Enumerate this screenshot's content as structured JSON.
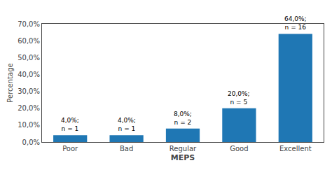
{
  "chart_data": {
    "type": "bar",
    "categories": [
      "Poor",
      "Bad",
      "Regular",
      "Good",
      "Excellent"
    ],
    "values": [
      4.0,
      4.0,
      8.0,
      20.0,
      64.0
    ],
    "annotations": [
      "4,0%;\nn = 1",
      "4,0%;\nn = 1",
      "8,0%;\nn = 2",
      "20,0%;\nn = 5",
      "64,0%;\nn = 16"
    ],
    "xlabel": "MEPS",
    "ylabel": "Percentage",
    "ylim": [
      0,
      70
    ],
    "yticks": [
      {
        "value": 0,
        "label": "0,0%"
      },
      {
        "value": 10,
        "label": "10,0%"
      },
      {
        "value": 20,
        "label": "20,0%"
      },
      {
        "value": 30,
        "label": "30,0%"
      },
      {
        "value": 40,
        "label": "40,0%"
      },
      {
        "value": 50,
        "label": "50,0%"
      },
      {
        "value": 60,
        "label": "60,0%"
      },
      {
        "value": 70,
        "label": "70,0%"
      }
    ],
    "grid": false
  }
}
